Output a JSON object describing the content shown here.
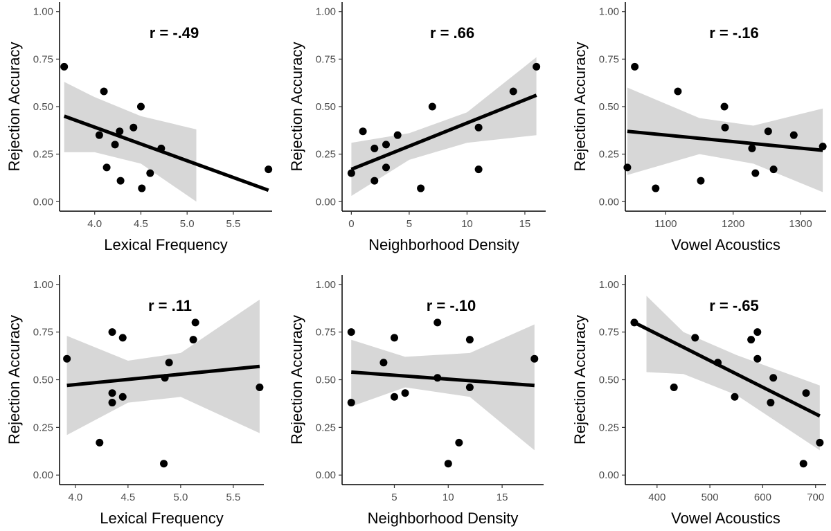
{
  "colors": {
    "ribbon": "#d3d3d3",
    "line": "#000000",
    "point": "#000000",
    "axis": "#000000",
    "tick_label": "#4d4d4d"
  },
  "chart_data": [
    {
      "type": "scatter",
      "annotation": "r = -.49",
      "xlabel": "Lexical Frequency",
      "ylabel": "Rejection Accuracy",
      "xlim": [
        3.62,
        5.92
      ],
      "ylim": [
        -0.05,
        1.05
      ],
      "xticks": [
        4.0,
        4.5,
        5.0,
        5.5
      ],
      "xtick_labels": [
        "4.0",
        "4.5",
        "5.0",
        "5.5"
      ],
      "yticks": [
        0,
        0.25,
        0.5,
        0.75,
        1.0
      ],
      "ytick_labels": [
        "0.00",
        "0.25",
        "0.50",
        "0.75",
        "1.00"
      ],
      "points": [
        [
          3.67,
          0.71
        ],
        [
          4.05,
          0.35
        ],
        [
          4.1,
          0.58
        ],
        [
          4.13,
          0.18
        ],
        [
          4.22,
          0.3
        ],
        [
          4.27,
          0.37
        ],
        [
          4.28,
          0.11
        ],
        [
          4.42,
          0.39
        ],
        [
          4.5,
          0.5
        ],
        [
          4.51,
          0.07
        ],
        [
          4.6,
          0.15
        ],
        [
          4.72,
          0.28
        ],
        [
          5.88,
          0.17
        ]
      ],
      "fit": {
        "x": [
          3.67,
          5.88
        ],
        "y": [
          0.45,
          0.06
        ]
      },
      "ribbon": {
        "x": [
          3.67,
          4.0,
          4.5,
          5.1
        ],
        "upper": [
          0.63,
          0.55,
          0.45,
          0.38
        ],
        "lower": [
          0.26,
          0.26,
          0.2,
          0.0
        ]
      }
    },
    {
      "type": "scatter",
      "annotation": "r = .66",
      "xlabel": "Neighborhood Density",
      "ylabel": "Rejection Accuracy",
      "xlim": [
        -0.8,
        16.8
      ],
      "ylim": [
        -0.05,
        1.05
      ],
      "xticks": [
        0,
        5,
        10,
        15
      ],
      "xtick_labels": [
        "0",
        "5",
        "10",
        "15"
      ],
      "yticks": [
        0,
        0.25,
        0.5,
        0.75,
        1.0
      ],
      "ytick_labels": [
        "0.00",
        "0.25",
        "0.50",
        "0.75",
        "1.00"
      ],
      "points": [
        [
          0,
          0.15
        ],
        [
          1,
          0.37
        ],
        [
          2,
          0.28
        ],
        [
          2,
          0.11
        ],
        [
          3,
          0.3
        ],
        [
          3,
          0.18
        ],
        [
          4,
          0.35
        ],
        [
          6,
          0.07
        ],
        [
          7,
          0.5
        ],
        [
          11,
          0.39
        ],
        [
          11,
          0.17
        ],
        [
          14,
          0.58
        ],
        [
          16,
          0.71
        ]
      ],
      "fit": {
        "x": [
          0,
          16
        ],
        "y": [
          0.17,
          0.56
        ]
      },
      "ribbon": {
        "x": [
          0,
          5,
          10,
          16
        ],
        "upper": [
          0.31,
          0.36,
          0.47,
          0.76
        ],
        "lower": [
          0.03,
          0.22,
          0.31,
          0.35
        ]
      }
    },
    {
      "type": "scatter",
      "annotation": "r = -.16",
      "xlabel": "Vowel Acoustics",
      "ylabel": "Rejection Accuracy",
      "xlim": [
        1040,
        1338
      ],
      "ylim": [
        -0.05,
        1.05
      ],
      "xticks": [
        1100,
        1200,
        1300
      ],
      "xtick_labels": [
        "1100",
        "1200",
        "1300"
      ],
      "yticks": [
        0,
        0.25,
        0.5,
        0.75,
        1.0
      ],
      "ytick_labels": [
        "0.00",
        "0.25",
        "0.50",
        "0.75",
        "1.00"
      ],
      "points": [
        [
          1043,
          0.18
        ],
        [
          1054,
          0.71
        ],
        [
          1085,
          0.07
        ],
        [
          1118,
          0.58
        ],
        [
          1152,
          0.11
        ],
        [
          1187,
          0.5
        ],
        [
          1188,
          0.39
        ],
        [
          1228,
          0.28
        ],
        [
          1233,
          0.15
        ],
        [
          1252,
          0.37
        ],
        [
          1260,
          0.17
        ],
        [
          1290,
          0.35
        ],
        [
          1333,
          0.29
        ]
      ],
      "fit": {
        "x": [
          1043,
          1333
        ],
        "y": [
          0.37,
          0.27
        ]
      },
      "ribbon": {
        "x": [
          1043,
          1150,
          1230,
          1333
        ],
        "upper": [
          0.6,
          0.44,
          0.4,
          0.49
        ],
        "lower": [
          0.14,
          0.25,
          0.2,
          0.05
        ]
      }
    },
    {
      "type": "scatter",
      "annotation": "r = .11",
      "xlabel": "Lexical Frequency",
      "ylabel": "Rejection Accuracy",
      "xlim": [
        3.85,
        5.79
      ],
      "ylim": [
        -0.05,
        1.05
      ],
      "xticks": [
        4.0,
        4.5,
        5.0,
        5.5
      ],
      "xtick_labels": [
        "4.0",
        "4.5",
        "5.0",
        "5.5"
      ],
      "yticks": [
        0,
        0.25,
        0.5,
        0.75,
        1.0
      ],
      "ytick_labels": [
        "0.00",
        "0.25",
        "0.50",
        "0.75",
        "1.00"
      ],
      "points": [
        [
          3.92,
          0.61
        ],
        [
          4.23,
          0.17
        ],
        [
          4.35,
          0.75
        ],
        [
          4.35,
          0.43
        ],
        [
          4.35,
          0.38
        ],
        [
          4.45,
          0.72
        ],
        [
          4.45,
          0.41
        ],
        [
          4.84,
          0.06
        ],
        [
          4.85,
          0.51
        ],
        [
          4.89,
          0.59
        ],
        [
          5.12,
          0.71
        ],
        [
          5.14,
          0.8
        ],
        [
          5.75,
          0.46
        ]
      ],
      "fit": {
        "x": [
          3.92,
          5.75
        ],
        "y": [
          0.47,
          0.57
        ]
      },
      "ribbon": {
        "x": [
          3.92,
          4.5,
          5.0,
          5.75
        ],
        "upper": [
          0.73,
          0.6,
          0.64,
          0.92
        ],
        "lower": [
          0.21,
          0.38,
          0.41,
          0.22
        ]
      }
    },
    {
      "type": "scatter",
      "annotation": "r = -.10",
      "xlabel": "Neighborhood Density",
      "ylabel": "Rejection Accuracy",
      "xlim": [
        0.15,
        18.85
      ],
      "ylim": [
        -0.05,
        1.05
      ],
      "xticks": [
        5,
        10,
        15
      ],
      "xtick_labels": [
        "5",
        "10",
        "15"
      ],
      "yticks": [
        0,
        0.25,
        0.5,
        0.75,
        1.0
      ],
      "ytick_labels": [
        "0.00",
        "0.25",
        "0.50",
        "0.75",
        "1.00"
      ],
      "points": [
        [
          1,
          0.75
        ],
        [
          1,
          0.38
        ],
        [
          4,
          0.59
        ],
        [
          5,
          0.72
        ],
        [
          5,
          0.41
        ],
        [
          6,
          0.43
        ],
        [
          9,
          0.8
        ],
        [
          9,
          0.51
        ],
        [
          10,
          0.06
        ],
        [
          11,
          0.17
        ],
        [
          12,
          0.71
        ],
        [
          12,
          0.46
        ],
        [
          18,
          0.61
        ]
      ],
      "fit": {
        "x": [
          1,
          18
        ],
        "y": [
          0.54,
          0.47
        ]
      },
      "ribbon": {
        "x": [
          1,
          6,
          12,
          18
        ],
        "upper": [
          0.71,
          0.62,
          0.64,
          0.79
        ],
        "lower": [
          0.36,
          0.46,
          0.41,
          0.13
        ]
      }
    },
    {
      "type": "scatter",
      "annotation": "r = -.65",
      "xlabel": "Vowel Acoustics",
      "ylabel": "Rejection Accuracy",
      "xlim": [
        340,
        720
      ],
      "ylim": [
        -0.05,
        1.05
      ],
      "xticks": [
        400,
        500,
        600,
        700
      ],
      "xtick_labels": [
        "400",
        "500",
        "600",
        "700"
      ],
      "yticks": [
        0,
        0.25,
        0.5,
        0.75,
        1.0
      ],
      "ytick_labels": [
        "0.00",
        "0.25",
        "0.50",
        "0.75",
        "1.00"
      ],
      "points": [
        [
          357,
          0.8
        ],
        [
          432,
          0.46
        ],
        [
          472,
          0.72
        ],
        [
          515,
          0.59
        ],
        [
          547,
          0.41
        ],
        [
          578,
          0.71
        ],
        [
          590,
          0.75
        ],
        [
          590,
          0.61
        ],
        [
          620,
          0.51
        ],
        [
          615,
          0.38
        ],
        [
          682,
          0.43
        ],
        [
          677,
          0.06
        ],
        [
          708,
          0.17
        ]
      ],
      "fit": {
        "x": [
          357,
          708
        ],
        "y": [
          0.8,
          0.31
        ]
      },
      "ribbon": {
        "x": [
          380,
          450,
          550,
          708
        ],
        "upper": [
          0.94,
          0.75,
          0.63,
          0.47
        ],
        "lower": [
          0.54,
          0.53,
          0.42,
          0.13
        ]
      }
    }
  ]
}
